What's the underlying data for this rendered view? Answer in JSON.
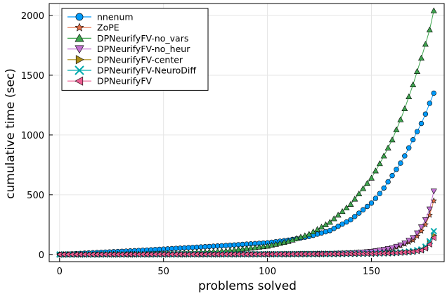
{
  "chart_data": {
    "type": "scatter",
    "xlabel": "problems solved",
    "ylabel": "cumulative time (sec)",
    "xlim": [
      -5,
      185
    ],
    "ylim": [
      -60,
      2100
    ],
    "xticks": [
      0,
      50,
      100,
      150
    ],
    "yticks": [
      0,
      500,
      1000,
      1500,
      2000
    ],
    "grid": true,
    "legend_position": "top-left",
    "series": [
      {
        "name": "nnenum",
        "color": "#009AFA",
        "marker": "circle",
        "points": [
          [
            0,
            0
          ],
          [
            20,
            18
          ],
          [
            40,
            35
          ],
          [
            60,
            55
          ],
          [
            80,
            75
          ],
          [
            100,
            98
          ],
          [
            110,
            120
          ],
          [
            120,
            150
          ],
          [
            130,
            200
          ],
          [
            140,
            290
          ],
          [
            150,
            430
          ],
          [
            155,
            530
          ],
          [
            160,
            660
          ],
          [
            165,
            790
          ],
          [
            170,
            960
          ],
          [
            175,
            1130
          ],
          [
            178,
            1265
          ],
          [
            180,
            1350
          ]
        ]
      },
      {
        "name": "ZoPE",
        "color": "#E36F47",
        "marker": "star",
        "points": [
          [
            0,
            0
          ],
          [
            50,
            1
          ],
          [
            100,
            3
          ],
          [
            120,
            5
          ],
          [
            140,
            12
          ],
          [
            150,
            22
          ],
          [
            155,
            35
          ],
          [
            160,
            50
          ],
          [
            165,
            80
          ],
          [
            170,
            120
          ],
          [
            173,
            170
          ],
          [
            176,
            250
          ],
          [
            178,
            330
          ],
          [
            180,
            450
          ]
        ]
      },
      {
        "name": "DPNeurifyFV-no_vars",
        "color": "#3EA44E",
        "marker": "triangle-up",
        "points": [
          [
            0,
            0
          ],
          [
            20,
            2
          ],
          [
            40,
            5
          ],
          [
            60,
            12
          ],
          [
            80,
            30
          ],
          [
            100,
            70
          ],
          [
            110,
            110
          ],
          [
            120,
            170
          ],
          [
            130,
            270
          ],
          [
            140,
            420
          ],
          [
            150,
            640
          ],
          [
            155,
            790
          ],
          [
            160,
            960
          ],
          [
            165,
            1170
          ],
          [
            170,
            1420
          ],
          [
            175,
            1700
          ],
          [
            178,
            1880
          ],
          [
            180,
            2040
          ]
        ]
      },
      {
        "name": "DPNeurifyFV-no_heur",
        "color": "#C371D2",
        "marker": "triangle-down",
        "points": [
          [
            0,
            0
          ],
          [
            50,
            1
          ],
          [
            100,
            3
          ],
          [
            130,
            7
          ],
          [
            140,
            12
          ],
          [
            150,
            25
          ],
          [
            155,
            38
          ],
          [
            160,
            55
          ],
          [
            165,
            85
          ],
          [
            170,
            140
          ],
          [
            173,
            200
          ],
          [
            176,
            290
          ],
          [
            178,
            380
          ],
          [
            180,
            530
          ]
        ]
      },
      {
        "name": "DPNeurifyFV-center",
        "color": "#AC8D18",
        "marker": "triangle-right",
        "points": [
          [
            0,
            0
          ],
          [
            50,
            1
          ],
          [
            100,
            2
          ],
          [
            130,
            4
          ],
          [
            150,
            8
          ],
          [
            160,
            12
          ],
          [
            165,
            18
          ],
          [
            170,
            25
          ],
          [
            174,
            40
          ],
          [
            176,
            60
          ],
          [
            178,
            95
          ],
          [
            180,
            160
          ]
        ]
      },
      {
        "name": "DPNeurifyFV-NeuroDiff",
        "color": "#00A9AD",
        "marker": "x",
        "points": [
          [
            0,
            0
          ],
          [
            50,
            1
          ],
          [
            100,
            2
          ],
          [
            130,
            4
          ],
          [
            150,
            8
          ],
          [
            160,
            12
          ],
          [
            165,
            18
          ],
          [
            170,
            28
          ],
          [
            174,
            42
          ],
          [
            176,
            65
          ],
          [
            178,
            110
          ],
          [
            180,
            195
          ]
        ]
      },
      {
        "name": "DPNeurifyFV",
        "color": "#ED5D92",
        "marker": "triangle-left",
        "points": [
          [
            0,
            0
          ],
          [
            50,
            1
          ],
          [
            100,
            2
          ],
          [
            130,
            4
          ],
          [
            150,
            7
          ],
          [
            160,
            11
          ],
          [
            165,
            16
          ],
          [
            170,
            23
          ],
          [
            174,
            35
          ],
          [
            176,
            52
          ],
          [
            178,
            85
          ],
          [
            180,
            140
          ]
        ]
      }
    ]
  }
}
